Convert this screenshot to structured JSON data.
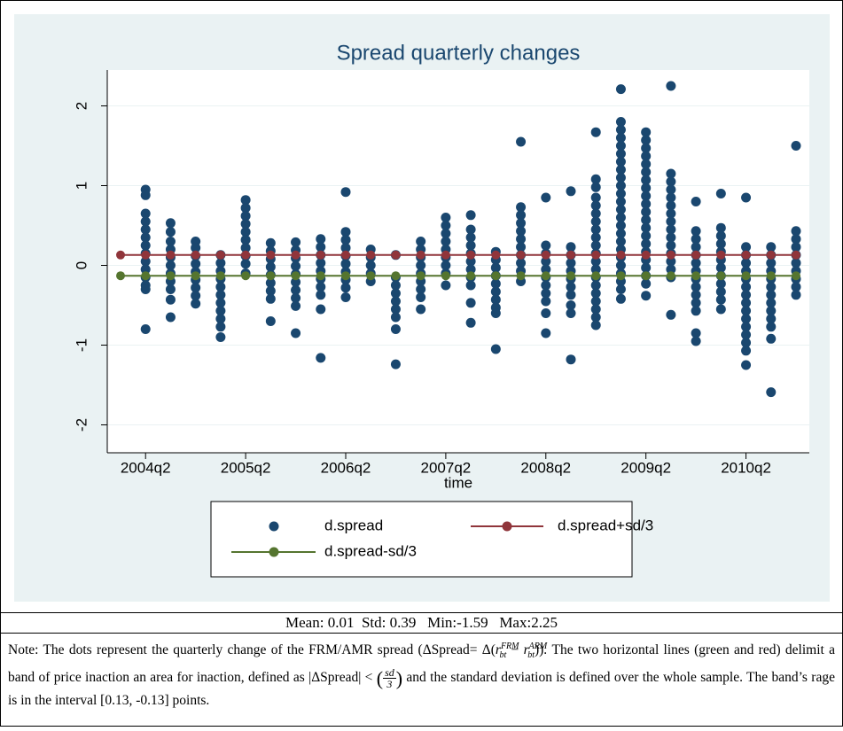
{
  "chart_data": {
    "type": "scatter",
    "title": "Spread quarterly changes",
    "x_label": "time",
    "categories": [
      null,
      "2004q2",
      null,
      null,
      null,
      "2005q2",
      null,
      null,
      null,
      "2006q2",
      null,
      null,
      null,
      "2007q2",
      null,
      null,
      null,
      "2008q2",
      null,
      null,
      null,
      "2009q2",
      null,
      null,
      null,
      "2010q2",
      null,
      null
    ],
    "ylim": [
      -2.35,
      2.45
    ],
    "yticks": [
      -2,
      -1,
      0,
      1,
      2
    ],
    "grid": true,
    "legend": "bottom",
    "series": [
      {
        "name": "d.spread",
        "type": "scatter",
        "color": "#1a476f",
        "values": [
          [],
          [
            0.95,
            0.88,
            0.65,
            0.55,
            0.45,
            0.35,
            0.25,
            0.15,
            0.05,
            -0.05,
            -0.15,
            -0.25,
            -0.3,
            -0.8
          ],
          [
            0.53,
            0.42,
            0.3,
            0.2,
            0.1,
            0,
            -0.1,
            -0.2,
            -0.3,
            -0.43,
            -0.65
          ],
          [
            0.3,
            0.22,
            0.12,
            0.02,
            -0.08,
            -0.18,
            -0.28,
            -0.38,
            -0.48
          ],
          [
            0.13,
            0.03,
            -0.07,
            -0.17,
            -0.27,
            -0.37,
            -0.47,
            -0.57,
            -0.67,
            -0.77,
            -0.9
          ],
          [
            0.82,
            0.72,
            0.62,
            0.52,
            0.42,
            0.32,
            0.22,
            0.12,
            0.02,
            -0.1
          ],
          [
            0.28,
            0.18,
            0.08,
            -0.02,
            -0.12,
            -0.22,
            -0.32,
            -0.42,
            -0.7
          ],
          [
            0.29,
            0.19,
            0.09,
            -0.01,
            -0.11,
            -0.21,
            -0.31,
            -0.41,
            -0.51,
            -0.85
          ],
          [
            0.33,
            0.23,
            0.13,
            0.03,
            -0.07,
            -0.17,
            -0.27,
            -0.37,
            -0.55,
            -1.16
          ],
          [
            0.92,
            0.42,
            0.32,
            0.22,
            0.12,
            0.02,
            -0.08,
            -0.18,
            -0.28,
            -0.4
          ],
          [
            0.2,
            0.1,
            0,
            -0.1,
            -0.2
          ],
          [
            0.13,
            -0.15,
            -0.25,
            -0.35,
            -0.45,
            -0.55,
            -0.65,
            -0.8,
            -1.24
          ],
          [
            0.3,
            0.2,
            0.1,
            0,
            -0.1,
            -0.2,
            -0.3,
            -0.4,
            -0.55
          ],
          [
            0.6,
            0.5,
            0.4,
            0.3,
            0.2,
            0.1,
            0,
            -0.1,
            -0.25
          ],
          [
            0.63,
            0.45,
            0.35,
            0.25,
            0.15,
            0.05,
            -0.05,
            -0.15,
            -0.25,
            -0.47,
            -0.72
          ],
          [
            0.17,
            0.07,
            -0.03,
            -0.13,
            -0.23,
            -0.33,
            -0.43,
            -0.53,
            -0.6,
            -1.05
          ],
          [
            1.55,
            0.73,
            0.63,
            0.53,
            0.43,
            0.33,
            0.23,
            0.13,
            0.03,
            -0.07,
            -0.2
          ],
          [
            0.85,
            0.25,
            0.15,
            0.05,
            -0.05,
            -0.15,
            -0.25,
            -0.35,
            -0.45,
            -0.6,
            -0.85
          ],
          [
            0.93,
            0.23,
            0.13,
            0.03,
            -0.07,
            -0.17,
            -0.27,
            -0.37,
            -0.5,
            -0.6,
            -1.18
          ],
          [
            1.67,
            1.08,
            0.98,
            0.85,
            0.75,
            0.65,
            0.55,
            0.45,
            0.35,
            0.25,
            0.15,
            0.05,
            -0.05,
            -0.15,
            -0.25,
            -0.35,
            -0.45,
            -0.55,
            -0.65,
            -0.75
          ],
          [
            2.21,
            1.8,
            1.7,
            1.6,
            1.5,
            1.4,
            1.3,
            1.2,
            1.1,
            1,
            0.9,
            0.8,
            0.7,
            0.6,
            0.5,
            0.4,
            0.3,
            0.2,
            0.1,
            0,
            -0.1,
            -0.2,
            -0.3,
            -0.42
          ],
          [
            1.67,
            1.57,
            1.47,
            1.37,
            1.27,
            1.17,
            1.07,
            0.97,
            0.87,
            0.77,
            0.67,
            0.57,
            0.47,
            0.37,
            0.27,
            0.17,
            0.07,
            -0.03,
            -0.13,
            -0.23,
            -0.38
          ],
          [
            2.25,
            1.15,
            1.05,
            0.95,
            0.85,
            0.75,
            0.65,
            0.55,
            0.45,
            0.35,
            0.25,
            0.15,
            0.05,
            -0.05,
            -0.15,
            -0.62
          ],
          [
            0.8,
            0.43,
            0.33,
            0.23,
            0.13,
            0.03,
            -0.07,
            -0.17,
            -0.27,
            -0.37,
            -0.47,
            -0.57,
            -0.85,
            -0.95
          ],
          [
            0.9,
            0.47,
            0.37,
            0.27,
            0.17,
            0.07,
            -0.03,
            -0.13,
            -0.23,
            -0.33,
            -0.43,
            -0.55
          ],
          [
            0.85,
            0.23,
            0.13,
            0.03,
            -0.07,
            -0.17,
            -0.27,
            -0.37,
            -0.47,
            -0.57,
            -0.67,
            -0.77,
            -0.87,
            -0.97,
            -1.07,
            -1.25
          ],
          [
            0.23,
            0.13,
            0.03,
            -0.07,
            -0.17,
            -0.27,
            -0.37,
            -0.47,
            -0.57,
            -0.67,
            -0.77,
            -0.92,
            -1.59
          ],
          [
            1.5,
            0.43,
            0.33,
            0.23,
            0.13,
            0.03,
            -0.07,
            -0.17,
            -0.27,
            -0.37
          ]
        ]
      },
      {
        "name": "d.spread+sd/3",
        "type": "line",
        "color": "#90353b",
        "values": [
          0.13,
          0.13,
          0.13,
          0.13,
          0.13,
          0.13,
          0.13,
          0.13,
          0.13,
          0.13,
          0.13,
          0.13,
          0.13,
          0.13,
          0.13,
          0.13,
          0.13,
          0.13,
          0.13,
          0.13,
          0.13,
          0.13,
          0.13,
          0.13,
          0.13,
          0.13,
          0.13,
          0.13
        ]
      },
      {
        "name": "d.spread-sd/3",
        "type": "line",
        "color": "#55752f",
        "values": [
          -0.13,
          -0.13,
          -0.13,
          -0.13,
          -0.13,
          -0.13,
          -0.13,
          -0.13,
          -0.13,
          -0.13,
          -0.13,
          -0.13,
          -0.13,
          -0.13,
          -0.13,
          -0.13,
          -0.13,
          -0.13,
          -0.13,
          -0.13,
          -0.13,
          -0.13,
          -0.13,
          -0.13,
          -0.13,
          -0.13,
          -0.13,
          -0.13
        ]
      }
    ]
  },
  "summary": "Mean: 0.01  Std: 0.39   Min:-1.59   Max:2.25",
  "note": {
    "text_1": "Note: The dots represent the quarterly change of the FRM/AMR spread (ΔSpread= Δ(",
    "r_1": "r",
    "sub_1": "bt",
    "sup_1": "FRM",
    "minus": " − ",
    "r_2": "r",
    "sub_2": "bt",
    "sup_2": "ARM",
    "text_2": ")). The two horizontal lines (green and red) delimit a band of price inaction an area for inaction, defined as |ΔSpread| < ",
    "frac_num": "sd",
    "frac_den": "3",
    "text_3": " and  the standard deviation is defined over the whole sample. The band’s rage is in the interval [0.13, -0.13] points."
  }
}
